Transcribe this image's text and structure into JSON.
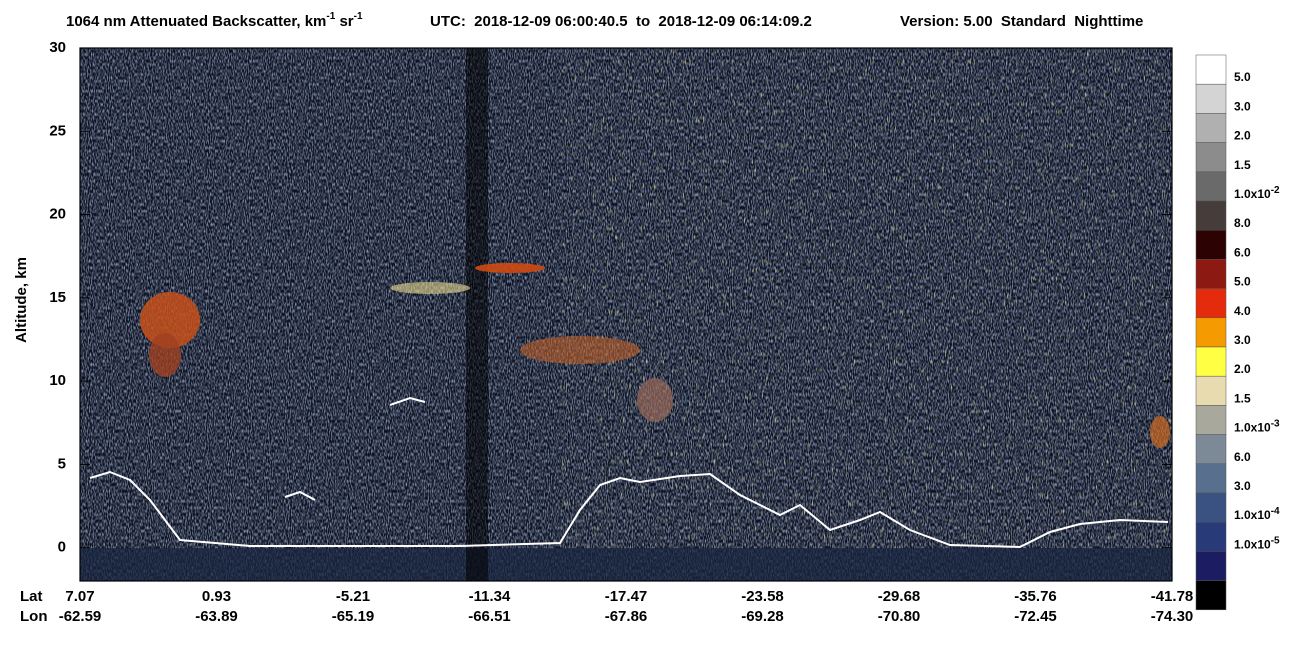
{
  "chart_data": {
    "type": "heatmap",
    "title": [
      {
        "text": "1064 nm Attenuated Backscatter, km"
      },
      {
        "sup": "-1"
      },
      {
        "text": " sr"
      },
      {
        "sup": "-1"
      }
    ],
    "utc": "UTC:  2018-12-09 06:00:40.5  to  2018-12-09 06:14:09.2",
    "version": "Version: 5.00  Standard  Nighttime",
    "ylabel": "Altitude, km",
    "ylim": [
      -2,
      30
    ],
    "yticks": [
      0,
      5,
      10,
      15,
      20,
      25,
      30
    ],
    "x_rows": [
      {
        "name": "Lat",
        "labels": [
          "7.07",
          "0.93",
          "-5.21",
          "-11.34",
          "-17.47",
          "-23.58",
          "-29.68",
          "-35.76",
          "-41.78"
        ]
      },
      {
        "name": "Lon",
        "labels": [
          "-62.59",
          "-63.89",
          "-65.19",
          "-66.51",
          "-67.86",
          "-69.28",
          "-70.80",
          "-72.45",
          "-74.30"
        ]
      }
    ],
    "colorbar": {
      "colors": [
        "#ffffff",
        "#d4d4d4",
        "#b0b0b0",
        "#8c8c8c",
        "#6a6a6a",
        "#463c3a",
        "#2c0202",
        "#8c1a12",
        "#e42c0c",
        "#f59a00",
        "#ffff44",
        "#e8dbb0",
        "#a8a89c",
        "#7c8a98",
        "#58708e",
        "#3a5282",
        "#283a78",
        "#1c1c62",
        "#000000"
      ],
      "labels": [
        {
          "text": "5.0"
        },
        {
          "text": "3.0"
        },
        {
          "text": "2.0"
        },
        {
          "text": "1.5"
        },
        {
          "text": "1.0x10",
          "sup": "-2"
        },
        {
          "text": "8.0"
        },
        {
          "text": "6.0"
        },
        {
          "text": "5.0"
        },
        {
          "text": "4.0"
        },
        {
          "text": "3.0"
        },
        {
          "text": "2.0"
        },
        {
          "text": "1.5"
        },
        {
          "text": "1.0x10",
          "sup": "-3"
        },
        {
          "text": "6.0"
        },
        {
          "text": "3.0"
        },
        {
          "text": "1.0x10",
          "sup": "-4"
        },
        {
          "text": "1.0x10",
          "sup": "-5"
        }
      ]
    }
  }
}
